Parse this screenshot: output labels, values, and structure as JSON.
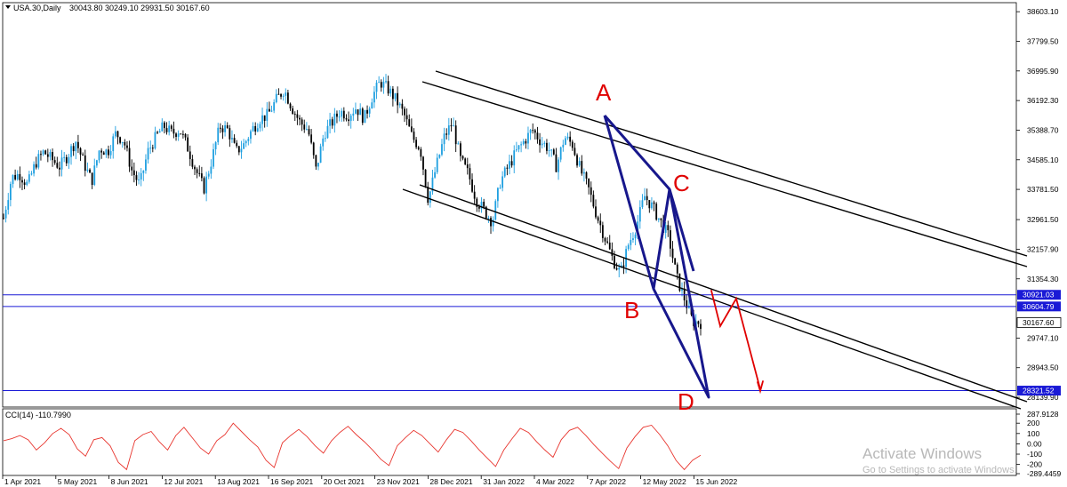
{
  "header": {
    "symbol": "USA.30,Daily",
    "ohlc": "30043.80 30249.10 29931.50 30167.60"
  },
  "chart_data": {
    "type": "candlestick",
    "price_axis": {
      "min": 27900,
      "max": 38800,
      "ticks": [
        "38603.10",
        "37799.50",
        "36995.90",
        "36192.30",
        "35388.70",
        "34585.10",
        "33781.50",
        "32961.50",
        "32157.90",
        "31354.30",
        "29747.10",
        "28943.50",
        "28139.90"
      ]
    },
    "price_tags": [
      {
        "value": "30921.03",
        "price": 30921,
        "kind": "level"
      },
      {
        "value": "30604.79",
        "price": 30605,
        "kind": "level"
      },
      {
        "value": "30167.60",
        "price": 30168,
        "kind": "current"
      },
      {
        "value": "28321.52",
        "price": 28321,
        "kind": "level"
      }
    ],
    "date_ticks": [
      "1 Apr 2021",
      "5 May 2021",
      "8 Jun 2021",
      "12 Jul 2021",
      "13 Aug 2021",
      "16 Sep 2021",
      "20 Oct 2021",
      "23 Nov 2021",
      "28 Dec 2021",
      "31 Jan 2022",
      "4 Mar 2022",
      "7 Apr 2022",
      "12 May 2022",
      "15 Jun 2022"
    ],
    "trend_price_points": [
      33000,
      34100,
      34200,
      33900,
      34500,
      34800,
      34600,
      34400,
      34700,
      35100,
      34500,
      34000,
      34900,
      34800,
      35300,
      35100,
      34300,
      33900,
      34800,
      35200,
      35500,
      35300,
      35400,
      34900,
      34300,
      33800,
      34600,
      35500,
      35400,
      34800,
      35000,
      35400,
      35700,
      35800,
      36200,
      36500,
      36000,
      35600,
      35400,
      34300,
      35300,
      35600,
      35900,
      35800,
      36000,
      35700,
      36300,
      36700,
      36500,
      36200,
      35800,
      35200,
      34900,
      33500,
      34400,
      35200,
      35600,
      34600,
      34200,
      33500,
      33200,
      32900,
      34000,
      34400,
      34800,
      35100,
      35400,
      35100,
      34900,
      34400,
      35200,
      35000,
      34300,
      33800,
      33100,
      32500,
      31900,
      31500,
      32300,
      32800,
      33600,
      33300,
      32900,
      32500,
      31400,
      30800,
      30200,
      30167
    ],
    "cci": {
      "label": "CCI(14) -110.7990",
      "ticks": [
        "287.9128",
        "200",
        "100",
        "0.00",
        "-100",
        "-200",
        "-289.4459"
      ],
      "min": -289.4459,
      "max": 287.9128,
      "points": [
        30,
        50,
        80,
        40,
        -60,
        10,
        100,
        150,
        90,
        -50,
        -120,
        40,
        60,
        -20,
        -180,
        -250,
        30,
        90,
        120,
        20,
        -60,
        80,
        160,
        60,
        -40,
        -100,
        30,
        90,
        200,
        120,
        40,
        -30,
        -160,
        -230,
        10,
        80,
        140,
        70,
        -20,
        -90,
        30,
        110,
        170,
        90,
        20,
        -60,
        -150,
        -210,
        -20,
        60,
        130,
        80,
        0,
        -80,
        40,
        140,
        110,
        30,
        -60,
        -140,
        -220,
        -60,
        50,
        150,
        110,
        20,
        -60,
        -130,
        40,
        130,
        160,
        80,
        -10,
        -90,
        -170,
        -240,
        -40,
        70,
        160,
        180,
        90,
        -20,
        -160,
        -250,
        -160,
        -110
      ]
    }
  },
  "annotations": {
    "labels": [
      {
        "text": "A"
      },
      {
        "text": "B"
      },
      {
        "text": "C"
      },
      {
        "text": "D"
      }
    ]
  },
  "watermark": {
    "line1": "Activate Windows",
    "line2": "Go to Settings to activate Windows."
  },
  "colors": {
    "bull": "#1e9fe0",
    "bear": "#000000",
    "level": "#1a1ad6",
    "pattern": "#17178c",
    "annotation": "#e00000",
    "cci": "#e8352e"
  }
}
